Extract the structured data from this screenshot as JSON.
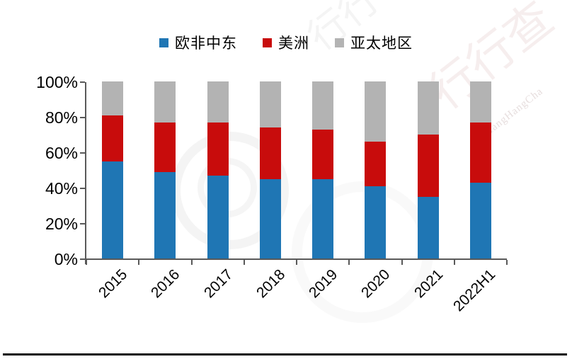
{
  "chart_data": {
    "type": "bar",
    "subtype": "stacked-100-percent",
    "title": "",
    "xlabel": "",
    "ylabel": "",
    "categories": [
      "2015",
      "2016",
      "2017",
      "2018",
      "2019",
      "2020",
      "2021",
      "2022H1"
    ],
    "series": [
      {
        "name": "欧非中东",
        "color": "#1F76B4",
        "values": [
          55,
          49,
          47,
          45,
          45,
          41,
          35,
          43
        ]
      },
      {
        "name": "美洲",
        "color": "#C80C0C",
        "values": [
          26,
          28,
          30,
          29,
          28,
          25,
          35,
          34
        ]
      },
      {
        "name": "亚太地区",
        "color": "#B3B3B3",
        "values": [
          19,
          23,
          23,
          26,
          27,
          34,
          30,
          23
        ]
      }
    ],
    "y_ticks": [
      "100%",
      "80%",
      "60%",
      "40%",
      "20%",
      "0%"
    ],
    "ylim": [
      0,
      100
    ],
    "grid": false,
    "legend_position": "top"
  },
  "watermark": {
    "brand": "行行查",
    "brand_short": "行行",
    "latin": "HangHangCha"
  },
  "colors": {
    "axis": "#595959",
    "text": "#000000",
    "background": "#FFFFFF",
    "footer_rule": "#0B0B0B"
  }
}
